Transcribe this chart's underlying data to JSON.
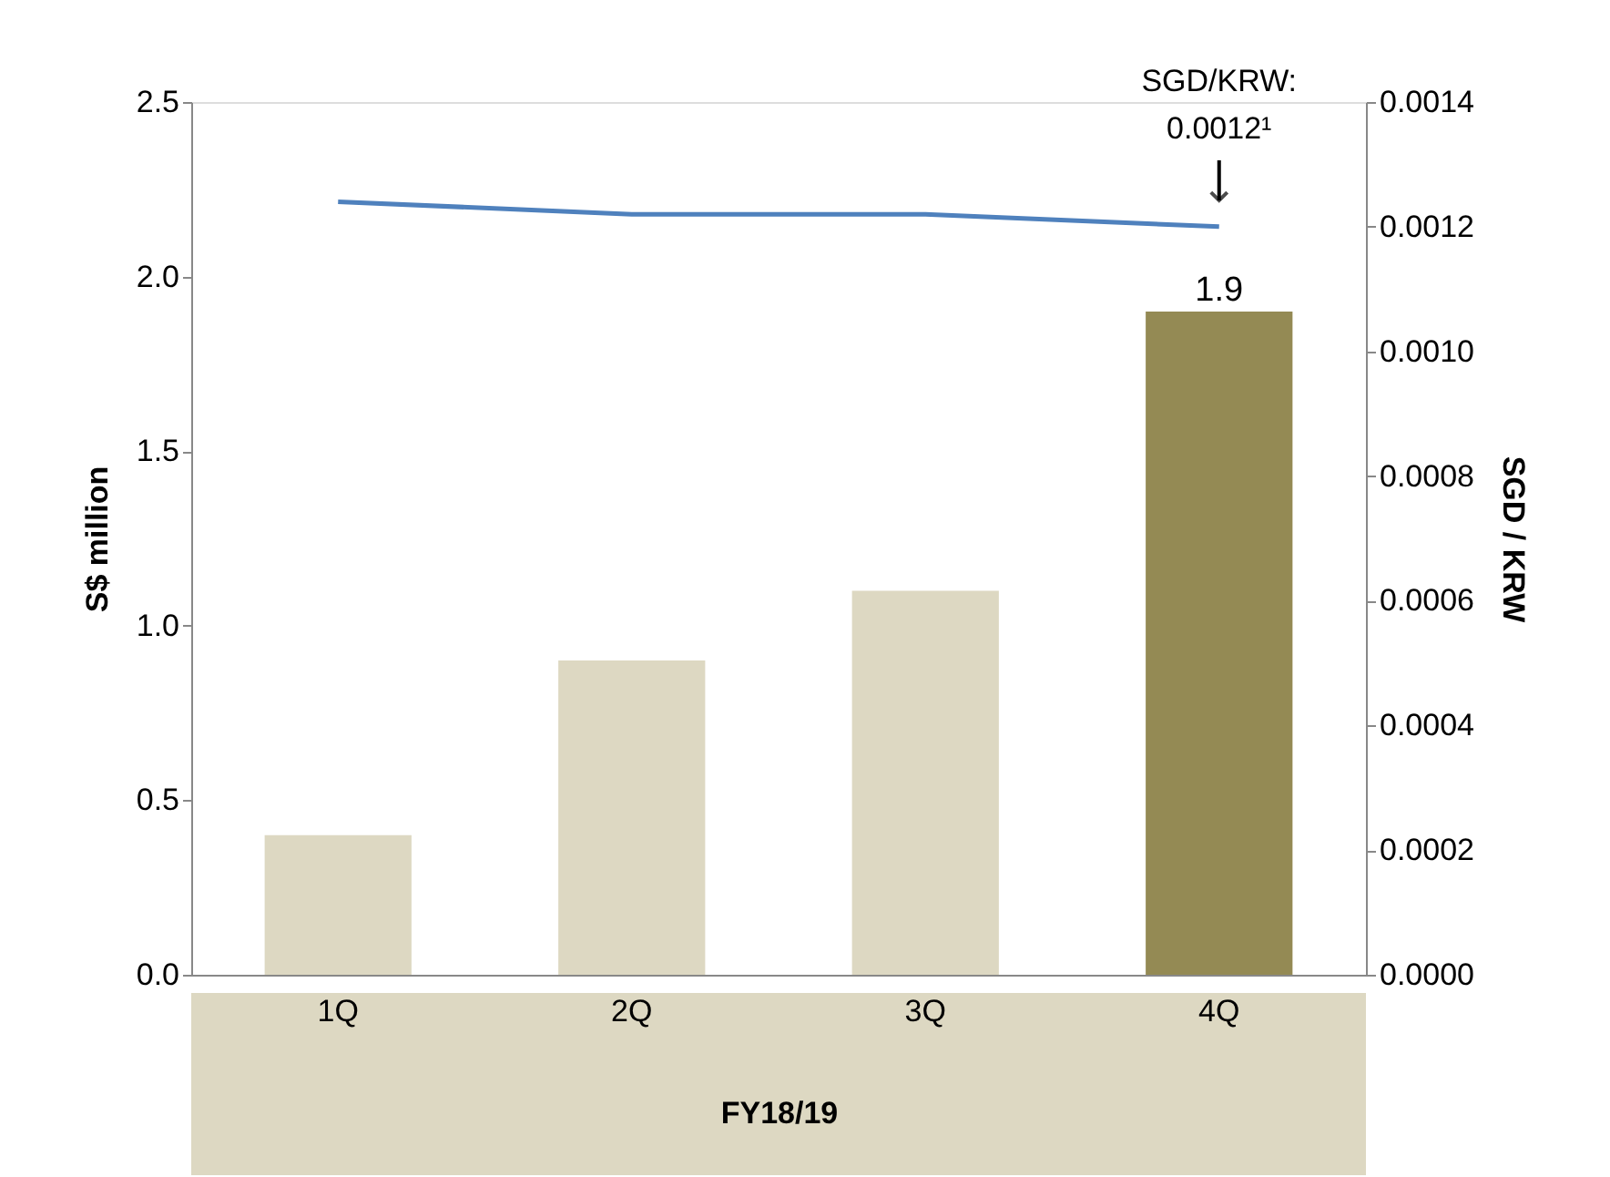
{
  "chart_data": {
    "type": "bar",
    "xlabel": "FY18/19",
    "ylabel": "S$ million",
    "y2label": "SGD / KRW",
    "categories": [
      "1Q",
      "2Q",
      "3Q",
      "4Q"
    ],
    "series": [
      {
        "colors": [
          "#ddd8c2",
          "#ddd8c2",
          "#ddd8c2",
          "#948a54"
        ],
        "values": [
          0.4,
          0.9,
          1.1,
          1.9
        ],
        "value_labels": [
          null,
          null,
          null,
          "1.9"
        ]
      },
      {
        "type": "line",
        "axis": "y2",
        "color": "#4f81bd",
        "values": [
          0.00124,
          0.00122,
          0.00122,
          0.0012
        ]
      }
    ],
    "ylim": [
      0,
      2.5
    ],
    "yticks": [
      {
        "value": 0,
        "label": "0.0"
      },
      {
        "value": 0.5,
        "label": "0.5"
      },
      {
        "value": 1,
        "label": "1.0"
      },
      {
        "value": 1.5,
        "label": "1.5"
      },
      {
        "value": 2,
        "label": "2.0"
      },
      {
        "value": 2.5,
        "label": "2.5"
      }
    ],
    "y2lim": [
      0,
      0.0014
    ],
    "y2ticks": [
      {
        "value": 0,
        "label": "0.0000"
      },
      {
        "value": 0.0002,
        "label": "0.0002"
      },
      {
        "value": 0.0004,
        "label": "0.0004"
      },
      {
        "value": 0.0006,
        "label": "0.0006"
      },
      {
        "value": 0.0008,
        "label": "0.0008"
      },
      {
        "value": 0.001,
        "label": "0.0010"
      },
      {
        "value": 0.0012,
        "label": "0.0012"
      },
      {
        "value": 0.0014,
        "label": "0.0014"
      }
    ],
    "annotations": [
      "SGD/KRW: 0.0012¹"
    ],
    "grid": false
  }
}
